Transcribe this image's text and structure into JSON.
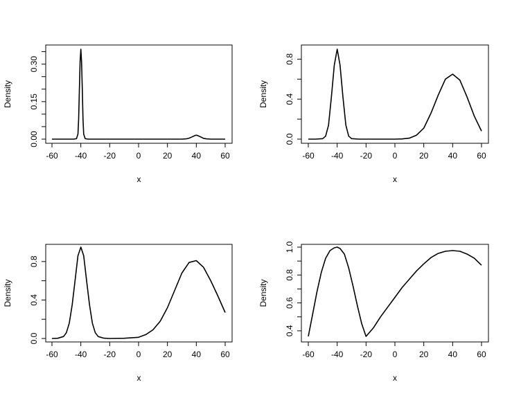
{
  "chart_data": [
    {
      "type": "line",
      "xlabel": "x",
      "ylabel": "Density",
      "xlim": [
        -60,
        60
      ],
      "ylim": [
        0,
        0.36
      ],
      "xticks": [
        "-60",
        "-40",
        "-20",
        "0",
        "20",
        "40",
        "60"
      ],
      "yticks": [
        "0.00",
        "0.15",
        "0.30"
      ],
      "yminor": [
        0.05,
        0.1,
        0.2,
        0.25,
        0.35
      ],
      "series": [
        {
          "x": [
            -60,
            -45,
            -43,
            -42,
            -41.5,
            -41,
            -40.5,
            -40,
            -39.5,
            -39,
            -38.5,
            -38,
            -37,
            -35,
            -20,
            0,
            20,
            30,
            33,
            35,
            37,
            39,
            40,
            41,
            43,
            45,
            47,
            50,
            60
          ],
          "y": [
            0,
            0,
            0.002,
            0.02,
            0.08,
            0.2,
            0.31,
            0.36,
            0.31,
            0.2,
            0.08,
            0.02,
            0.002,
            0,
            0,
            0,
            0,
            0,
            0.001,
            0.004,
            0.009,
            0.014,
            0.016,
            0.014,
            0.009,
            0.003,
            0.001,
            0,
            0
          ]
        }
      ]
    },
    {
      "type": "line",
      "xlabel": "x",
      "ylabel": "Density",
      "xlim": [
        -60,
        60
      ],
      "ylim": [
        0,
        0.9
      ],
      "xticks": [
        "-60",
        "-40",
        "-20",
        "0",
        "20",
        "40",
        "60"
      ],
      "yticks": [
        "0.0",
        "0.4",
        "0.8"
      ],
      "yminor": [
        0.2,
        0.6
      ],
      "series": [
        {
          "x": [
            -60,
            -55,
            -50,
            -48,
            -46,
            -44,
            -42,
            -40,
            -38,
            -36,
            -34,
            -32,
            -30,
            -25,
            -20,
            -10,
            0,
            5,
            10,
            15,
            20,
            25,
            30,
            35,
            40,
            45,
            50,
            55,
            60
          ],
          "y": [
            0,
            0,
            0.005,
            0.03,
            0.14,
            0.42,
            0.74,
            0.9,
            0.74,
            0.42,
            0.14,
            0.03,
            0.005,
            0,
            0,
            0,
            0,
            0.002,
            0.01,
            0.04,
            0.11,
            0.26,
            0.44,
            0.6,
            0.65,
            0.59,
            0.42,
            0.23,
            0.08
          ]
        }
      ]
    },
    {
      "type": "line",
      "xlabel": "x",
      "ylabel": "Density",
      "xlim": [
        -60,
        60
      ],
      "ylim": [
        0,
        0.95
      ],
      "xticks": [
        "-60",
        "-40",
        "-20",
        "0",
        "20",
        "40",
        "60"
      ],
      "yticks": [
        "0.0",
        "0.4",
        "0.8"
      ],
      "yminor": [
        0.2,
        0.6
      ],
      "series": [
        {
          "x": [
            -60,
            -56,
            -52,
            -50,
            -48,
            -46,
            -44,
            -42,
            -40,
            -38,
            -36,
            -34,
            -32,
            -30,
            -28,
            -24,
            -20,
            -10,
            0,
            5,
            10,
            15,
            20,
            25,
            30,
            35,
            40,
            45,
            50,
            55,
            60
          ],
          "y": [
            0,
            0.002,
            0.02,
            0.06,
            0.16,
            0.35,
            0.6,
            0.86,
            0.95,
            0.86,
            0.6,
            0.35,
            0.16,
            0.06,
            0.02,
            0.003,
            0,
            0.002,
            0.012,
            0.04,
            0.09,
            0.18,
            0.32,
            0.5,
            0.68,
            0.79,
            0.81,
            0.74,
            0.6,
            0.44,
            0.27
          ]
        }
      ]
    },
    {
      "type": "line",
      "xlabel": "x",
      "ylabel": "Density",
      "xlim": [
        -60,
        60
      ],
      "ylim": [
        0.35,
        1.0
      ],
      "xticks": [
        "-60",
        "-40",
        "-20",
        "0",
        "20",
        "40",
        "60"
      ],
      "yticks": [
        "0.4",
        "0.6",
        "0.8",
        "1.0"
      ],
      "yminor": [
        0.5,
        0.7,
        0.9
      ],
      "series": [
        {
          "x": [
            -60,
            -57,
            -54,
            -51,
            -48,
            -45,
            -42,
            -40,
            -38,
            -35,
            -32,
            -29,
            -26,
            -23,
            -20,
            -15,
            -10,
            -5,
            0,
            5,
            10,
            15,
            20,
            25,
            30,
            35,
            40,
            45,
            50,
            55,
            60
          ],
          "y": [
            0.36,
            0.52,
            0.68,
            0.82,
            0.92,
            0.975,
            0.995,
            1.0,
            0.99,
            0.95,
            0.85,
            0.72,
            0.58,
            0.45,
            0.36,
            0.42,
            0.5,
            0.57,
            0.64,
            0.71,
            0.77,
            0.83,
            0.88,
            0.925,
            0.955,
            0.97,
            0.975,
            0.97,
            0.95,
            0.92,
            0.87
          ]
        }
      ]
    }
  ]
}
